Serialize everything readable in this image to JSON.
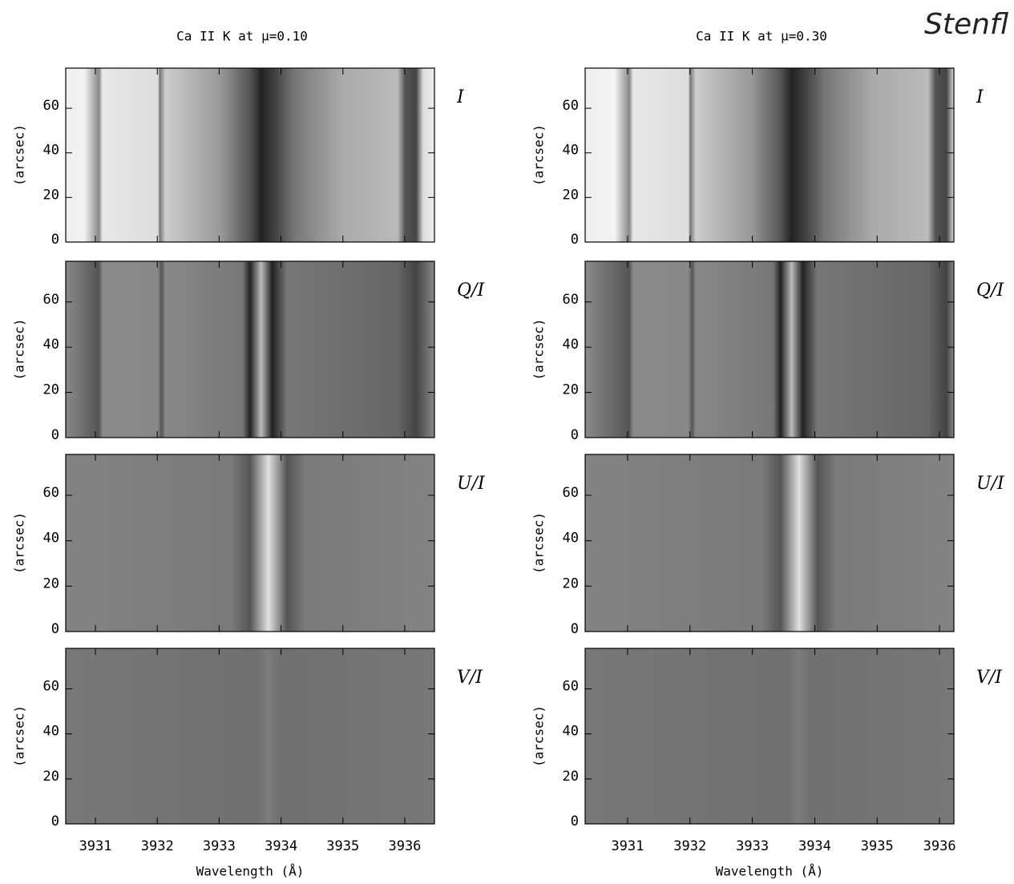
{
  "watermark": "Stenfl",
  "chart_data": [
    {
      "type": "image",
      "title": "Ca II K at μ=0.10",
      "label": "I",
      "ylabel": "(arcsec)",
      "ylim": [
        0,
        78
      ],
      "yticks": [
        0,
        20,
        40,
        60
      ],
      "xlim": [
        3930.52,
        3936.48
      ],
      "xticks": [
        3931,
        3932,
        3933,
        3934,
        3935,
        3936
      ]
    },
    {
      "type": "image",
      "label": "Q/I",
      "ylabel": "(arcsec)",
      "ylim": [
        0,
        78
      ],
      "yticks": [
        0,
        20,
        40,
        60
      ],
      "xlim": [
        3930.52,
        3936.48
      ],
      "xticks": [
        3931,
        3932,
        3933,
        3934,
        3935,
        3936
      ]
    },
    {
      "type": "image",
      "label": "U/I",
      "ylabel": "(arcsec)",
      "ylim": [
        0,
        78
      ],
      "yticks": [
        0,
        20,
        40,
        60
      ],
      "xlim": [
        3930.52,
        3936.48
      ],
      "xticks": [
        3931,
        3932,
        3933,
        3934,
        3935,
        3936
      ]
    },
    {
      "type": "image",
      "label": "V/I",
      "ylabel": "(arcsec)",
      "xlabel": "Wavelength (Å)",
      "ylim": [
        0,
        78
      ],
      "yticks": [
        0,
        20,
        40,
        60
      ],
      "xlim": [
        3930.52,
        3936.48
      ],
      "xticks": [
        3931,
        3932,
        3933,
        3934,
        3935,
        3936
      ]
    },
    {
      "type": "image",
      "title": "Ca II K at μ=0.30",
      "label": "I",
      "ylabel": "(arcsec)",
      "ylim": [
        0,
        78
      ],
      "yticks": [
        0,
        20,
        40,
        60
      ],
      "xlim": [
        3930.32,
        3936.23
      ],
      "xticks": [
        3931,
        3932,
        3933,
        3934,
        3935,
        3936
      ]
    },
    {
      "type": "image",
      "label": "Q/I",
      "ylabel": "(arcsec)",
      "ylim": [
        0,
        78
      ],
      "yticks": [
        0,
        20,
        40,
        60
      ],
      "xlim": [
        3930.32,
        3936.23
      ],
      "xticks": [
        3931,
        3932,
        3933,
        3934,
        3935,
        3936
      ]
    },
    {
      "type": "image",
      "label": "U/I",
      "ylabel": "(arcsec)",
      "ylim": [
        0,
        78
      ],
      "yticks": [
        0,
        20,
        40,
        60
      ],
      "xlim": [
        3930.32,
        3936.23
      ],
      "xticks": [
        3931,
        3932,
        3933,
        3934,
        3935,
        3936
      ]
    },
    {
      "type": "image",
      "label": "V/I",
      "ylabel": "(arcsec)",
      "xlabel": "Wavelength (Å)",
      "ylim": [
        0,
        78
      ],
      "yticks": [
        0,
        20,
        40,
        60
      ],
      "xlim": [
        3930.32,
        3936.23
      ],
      "xticks": [
        3931,
        3932,
        3933,
        3934,
        3935,
        3936
      ]
    }
  ]
}
